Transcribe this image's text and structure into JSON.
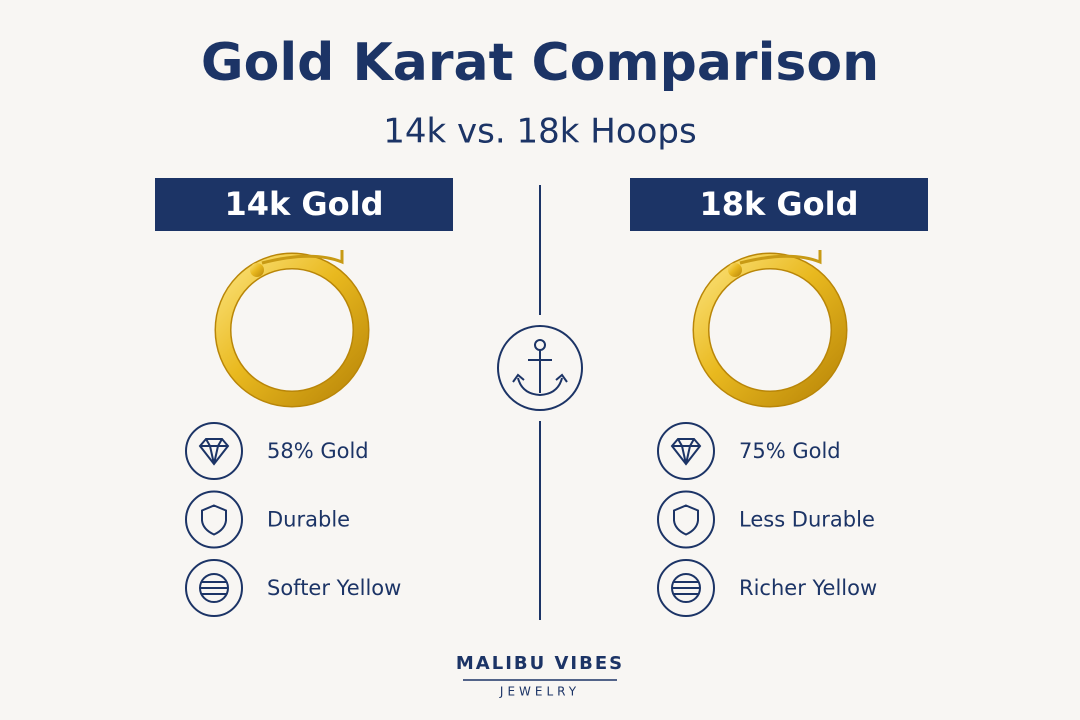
{
  "header": {
    "title": "Gold Karat Comparison",
    "subtitle": "14k vs. 18k Hoops"
  },
  "columns": [
    {
      "title": "14k Gold",
      "features": [
        "58% Gold",
        "Durable",
        "Softer Yellow"
      ]
    },
    {
      "title": "18k Gold",
      "features": [
        "75% Gold",
        "Less Durable",
        "Richer Yellow"
      ]
    }
  ],
  "brand": {
    "name": "MALIBU VIBES",
    "tagline": "JEWELRY"
  }
}
